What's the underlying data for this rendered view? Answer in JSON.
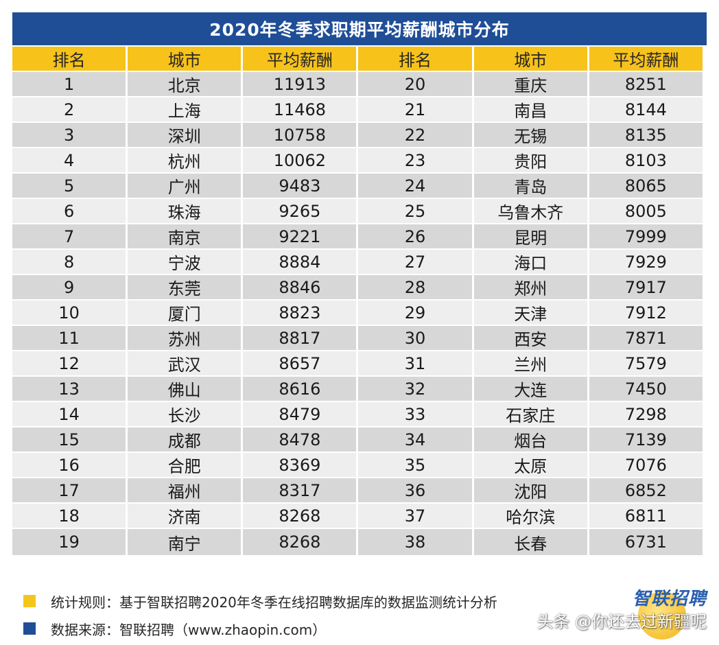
{
  "title": "2020年冬季求职期平均薪酬城市分布",
  "headers": [
    "排名",
    "城市",
    "平均薪酬",
    "排名",
    "城市",
    "平均薪酬"
  ],
  "rows": [
    [
      "1",
      "北京",
      "11913",
      "20",
      "重庆",
      "8251"
    ],
    [
      "2",
      "上海",
      "11468",
      "21",
      "南昌",
      "8144"
    ],
    [
      "3",
      "深圳",
      "10758",
      "22",
      "无锡",
      "8135"
    ],
    [
      "4",
      "杭州",
      "10062",
      "23",
      "贵阳",
      "8103"
    ],
    [
      "5",
      "广州",
      "9483",
      "24",
      "青岛",
      "8065"
    ],
    [
      "6",
      "珠海",
      "9265",
      "25",
      "乌鲁木齐",
      "8005"
    ],
    [
      "7",
      "南京",
      "9221",
      "26",
      "昆明",
      "7999"
    ],
    [
      "8",
      "宁波",
      "8884",
      "27",
      "海口",
      "7929"
    ],
    [
      "9",
      "东莞",
      "8846",
      "28",
      "郑州",
      "7917"
    ],
    [
      "10",
      "厦门",
      "8823",
      "29",
      "天津",
      "7912"
    ],
    [
      "11",
      "苏州",
      "8817",
      "30",
      "西安",
      "7871"
    ],
    [
      "12",
      "武汉",
      "8657",
      "31",
      "兰州",
      "7579"
    ],
    [
      "13",
      "佛山",
      "8616",
      "32",
      "大连",
      "7450"
    ],
    [
      "14",
      "长沙",
      "8479",
      "33",
      "石家庄",
      "7298"
    ],
    [
      "15",
      "成都",
      "8478",
      "34",
      "烟台",
      "7139"
    ],
    [
      "16",
      "合肥",
      "8369",
      "35",
      "太原",
      "7076"
    ],
    [
      "17",
      "福州",
      "8317",
      "36",
      "沈阳",
      "6852"
    ],
    [
      "18",
      "济南",
      "8268",
      "37",
      "哈尔滨",
      "6811"
    ],
    [
      "19",
      "南宁",
      "8268",
      "38",
      "长春",
      "6731"
    ]
  ],
  "legend": {
    "rule": "统计规则：基于智联招聘2020年冬季在线招聘数据库的数据监测统计分析",
    "source": "数据来源：智联招聘（www.zhaopin.com）"
  },
  "brand": "智联招聘",
  "watermark": "头条 @你还去过新疆呢",
  "colors": {
    "title_bg": "#1f4e97",
    "header_bg": "#f7c21a",
    "row_dark": "#d7d7d7",
    "row_light": "#eeeeee",
    "legend_yellow": "#f4c51d",
    "legend_blue": "#1f4e97"
  }
}
